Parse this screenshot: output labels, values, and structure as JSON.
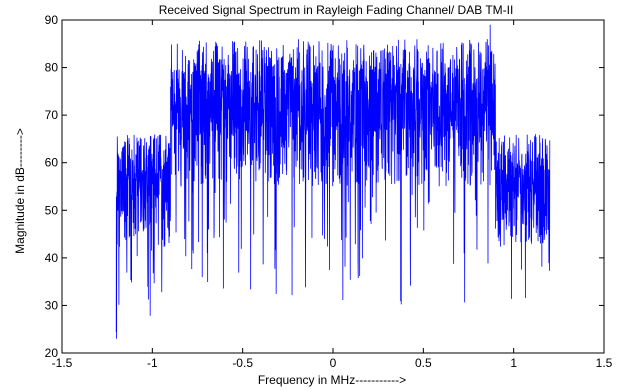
{
  "chart_data": {
    "type": "line",
    "title": "Received Signal Spectrum in Rayleigh Fading Channel/ DAB TM-II",
    "xlabel": "Frequency in MHz----------->",
    "ylabel": "Magnitude in dB-------->",
    "xlim": [
      -1.5,
      1.5
    ],
    "ylim": [
      20,
      90
    ],
    "xticks": [
      -1.5,
      -1,
      -0.5,
      0,
      0.5,
      1,
      1.5
    ],
    "xtick_labels": [
      "-1.5",
      "-1",
      "-0.5",
      "0",
      "0.5",
      "1",
      "1.5"
    ],
    "yticks": [
      20,
      30,
      40,
      50,
      60,
      70,
      80,
      90
    ],
    "ytick_labels": [
      "20",
      "30",
      "40",
      "50",
      "60",
      "70",
      "80",
      "90"
    ],
    "grid": false,
    "box": true,
    "series": [
      {
        "color": "#0000ff",
        "x_range": [
          -1.2,
          1.2
        ],
        "num_points": 2400,
        "segments": [
          {
            "x_start": -1.2,
            "x_end": -0.9,
            "base_db": 52,
            "upper_db": 66,
            "lower_db": 24,
            "envelope": "low"
          },
          {
            "x_start": -0.9,
            "x_end": 0.9,
            "base_db": 65,
            "upper_db": 86,
            "lower_db": 29,
            "envelope": "high"
          },
          {
            "x_start": 0.9,
            "x_end": 1.2,
            "base_db": 52,
            "upper_db": 66,
            "lower_db": 27,
            "envelope": "low"
          }
        ],
        "peak": {
          "x": 0.87,
          "y": 89
        },
        "min": {
          "x": -1.2,
          "y": 23
        }
      }
    ]
  }
}
